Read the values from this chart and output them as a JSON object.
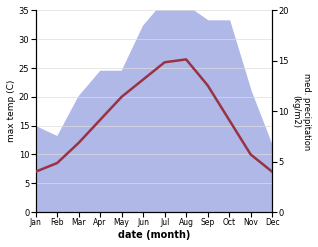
{
  "months": [
    "Jan",
    "Feb",
    "Mar",
    "Apr",
    "May",
    "Jun",
    "Jul",
    "Aug",
    "Sep",
    "Oct",
    "Nov",
    "Dec"
  ],
  "month_positions": [
    0,
    1,
    2,
    3,
    4,
    5,
    6,
    7,
    8,
    9,
    10,
    11
  ],
  "max_temp": [
    7.0,
    8.5,
    12.0,
    16.0,
    20.0,
    23.0,
    26.0,
    26.5,
    22.0,
    16.0,
    10.0,
    7.0
  ],
  "precipitation": [
    8.5,
    7.5,
    11.5,
    14.0,
    14.0,
    18.5,
    21.0,
    20.5,
    19.0,
    19.0,
    12.0,
    6.5
  ],
  "temp_color": "#993344",
  "precip_fill_color": "#b0b8e8",
  "xlabel": "date (month)",
  "ylabel_left": "max temp (C)",
  "ylabel_right": "med. precipitation\n(kg/m2)",
  "ylim_left": [
    0,
    35
  ],
  "ylim_right": [
    0,
    20
  ],
  "yticks_left": [
    0,
    5,
    10,
    15,
    20,
    25,
    30,
    35
  ],
  "yticks_right": [
    0,
    5,
    10,
    15,
    20
  ]
}
